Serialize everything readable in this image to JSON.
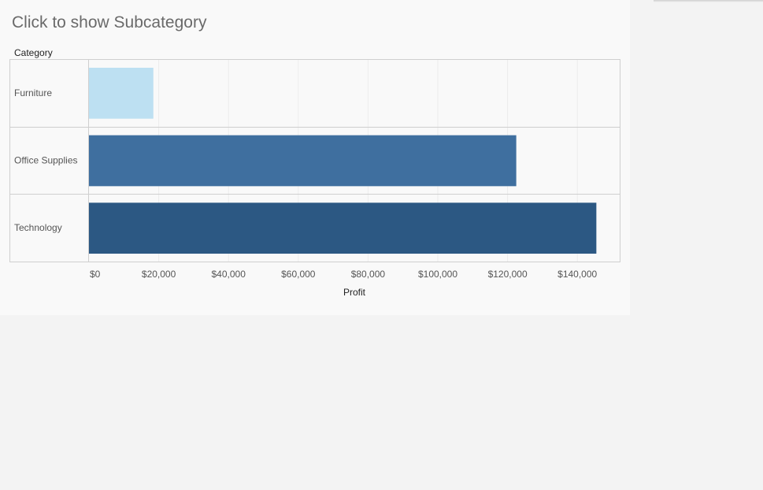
{
  "dashboard": {
    "title": "Click to show Subcategory"
  },
  "chart_data": {
    "type": "bar",
    "orientation": "horizontal",
    "row_header": "Category",
    "categories": [
      "Furniture",
      "Office Supplies",
      "Technology"
    ],
    "values": [
      18451,
      122491,
      145455
    ],
    "colors": [
      "#bde0f2",
      "#3f6f9f",
      "#2c5883"
    ],
    "xlabel": "Profit",
    "ylabel": "",
    "xlim": [
      0,
      160000
    ],
    "x_ticks": [
      0,
      20000,
      40000,
      60000,
      80000,
      100000,
      120000,
      140000
    ],
    "x_tick_labels": [
      "$0",
      "$20,000",
      "$40,000",
      "$60,000",
      "$80,000",
      "$100,000",
      "$120,000",
      "$140,000"
    ],
    "grid": "vertical-faint",
    "legend": "none"
  }
}
